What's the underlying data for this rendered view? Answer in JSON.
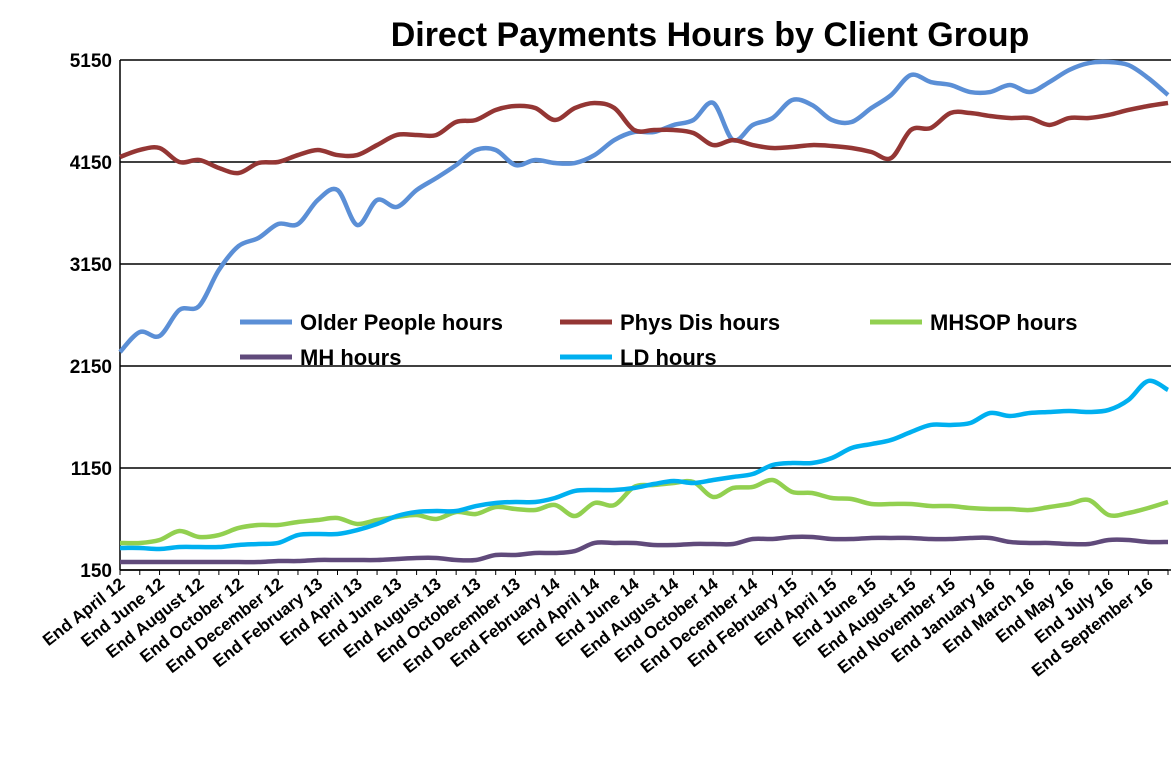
{
  "chart_data": {
    "type": "line",
    "title": "Direct Payments Hours by Client Group",
    "categories": [
      "End April 12",
      null,
      "End June 12",
      null,
      "End August 12",
      null,
      "End October 12",
      null,
      "End December 12",
      null,
      "End February 13",
      null,
      "End April 13",
      null,
      "End June 13",
      null,
      "End August 13",
      null,
      "End October 13",
      null,
      "End December 13",
      null,
      "End February 14",
      null,
      "End April 14",
      null,
      "End June 14",
      null,
      "End August 14",
      null,
      "End October 14",
      null,
      "End December 14",
      null,
      "End February 15",
      null,
      "End April 15",
      null,
      "End June 15",
      null,
      "End August 15",
      null,
      "End November 15",
      null,
      "End January 16",
      null,
      "End March 16",
      null,
      "End May 16",
      null,
      "End July 16",
      null,
      "End September 16",
      null
    ],
    "series": [
      {
        "name": "Older People hours",
        "color": "#5b8fd6",
        "values": [
          2287,
          2483,
          2444,
          2699,
          2738,
          3091,
          3326,
          3405,
          3542,
          3542,
          3777,
          3875,
          3532,
          3777,
          3709,
          3875,
          3993,
          4120,
          4268,
          4268,
          4120,
          4170,
          4140,
          4140,
          4218,
          4365,
          4444,
          4444,
          4513,
          4562,
          4729,
          4365,
          4513,
          4581,
          4758,
          4709,
          4562,
          4542,
          4679,
          4807,
          5003,
          4934,
          4905,
          4836,
          4836,
          4905,
          4836,
          4934,
          5052,
          5120,
          5130,
          5100,
          4973,
          4807
        ]
      },
      {
        "name": "Phys Dis hours",
        "color": "#943634",
        "values": [
          4199,
          4268,
          4287,
          4150,
          4170,
          4091,
          4042,
          4140,
          4150,
          4218,
          4268,
          4218,
          4218,
          4316,
          4415,
          4415,
          4415,
          4542,
          4562,
          4660,
          4699,
          4679,
          4562,
          4679,
          4729,
          4679,
          4464,
          4464,
          4464,
          4434,
          4316,
          4365,
          4316,
          4287,
          4297,
          4316,
          4307,
          4287,
          4248,
          4189,
          4464,
          4483,
          4630,
          4630,
          4601,
          4581,
          4581,
          4513,
          4581,
          4581,
          4611,
          4660,
          4699,
          4729
        ]
      },
      {
        "name": "MHSOP hours",
        "color": "#92d050",
        "values": [
          415,
          415,
          444,
          532,
          474,
          493,
          562,
          591,
          591,
          621,
          640,
          660,
          601,
          640,
          670,
          689,
          650,
          719,
          699,
          768,
          748,
          738,
          787,
          679,
          807,
          787,
          964,
          983,
          1003,
          1013,
          866,
          954,
          964,
          1032,
          915,
          905,
          856,
          846,
          797,
          797,
          797,
          777,
          777,
          758,
          748,
          748,
          738,
          768,
          797,
          836,
          689,
          709,
          758,
          817
        ]
      },
      {
        "name": "MH hours",
        "color": "#604a7b",
        "values": [
          228,
          228,
          228,
          228,
          228,
          228,
          228,
          228,
          238,
          238,
          248,
          248,
          248,
          248,
          258,
          268,
          268,
          248,
          248,
          297,
          297,
          317,
          317,
          336,
          415,
          415,
          415,
          395,
          395,
          405,
          405,
          405,
          454,
          454,
          474,
          474,
          454,
          454,
          464,
          464,
          464,
          454,
          454,
          464,
          464,
          425,
          415,
          415,
          405,
          405,
          444,
          444,
          425,
          425
        ]
      },
      {
        "name": "LD hours",
        "color": "#00b0f0",
        "values": [
          366,
          366,
          356,
          375,
          375,
          375,
          395,
          405,
          415,
          493,
          503,
          503,
          542,
          601,
          679,
          719,
          728,
          728,
          777,
          807,
          817,
          817,
          856,
          925,
          934,
          934,
          954,
          993,
          1023,
          1003,
          1032,
          1062,
          1091,
          1179,
          1199,
          1199,
          1248,
          1346,
          1385,
          1425,
          1503,
          1572,
          1572,
          1591,
          1689,
          1660,
          1689,
          1699,
          1709,
          1699,
          1719,
          1817,
          2003,
          1915
        ]
      }
    ],
    "ylim": [
      150,
      5150
    ],
    "yticks": [
      150,
      1150,
      2150,
      3150,
      4150,
      5150
    ],
    "grid": true,
    "legend": "center"
  }
}
